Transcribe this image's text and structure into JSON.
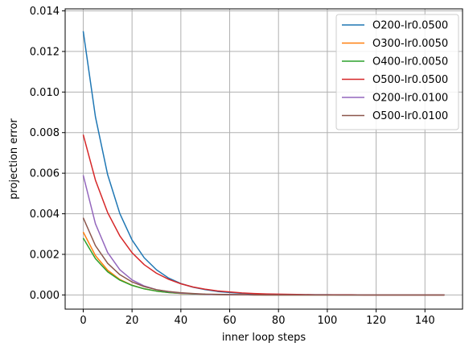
{
  "chart_data": {
    "type": "line",
    "title": "",
    "xlabel": "inner loop steps",
    "ylabel": "projection error",
    "xlim": [
      -7.4,
      155.4
    ],
    "ylim": [
      -0.0007,
      0.0141
    ],
    "grid": true,
    "legend_position": "top-right",
    "x_ticks": [
      0,
      20,
      40,
      60,
      80,
      100,
      120,
      140
    ],
    "x_tick_labels": [
      "0",
      "20",
      "40",
      "60",
      "80",
      "100",
      "120",
      "140"
    ],
    "y_ticks": [
      0,
      0.002,
      0.004,
      0.006,
      0.008,
      0.01,
      0.012,
      0.014
    ],
    "y_tick_labels": [
      "0.000",
      "0.002",
      "0.004",
      "0.006",
      "0.008",
      "0.010",
      "0.012",
      "0.014"
    ],
    "x": [
      0,
      5,
      10,
      15,
      20,
      25,
      30,
      35,
      40,
      45,
      50,
      55,
      60,
      65,
      70,
      75,
      80,
      85,
      90,
      95,
      100,
      105,
      110,
      115,
      120,
      125,
      130,
      135,
      140,
      145,
      148
    ],
    "series": [
      {
        "name": "O200-lr0.0500",
        "color": "#1f77b4",
        "values": [
          0.013,
          0.00878,
          0.00593,
          0.00401,
          0.00271,
          0.00183,
          0.00124,
          0.00083,
          0.00056,
          0.00038,
          0.00026,
          0.00017,
          0.00012,
          8e-05,
          5e-05,
          4e-05,
          2e-05,
          2e-05,
          1e-05,
          1e-05,
          1e-05,
          0.0,
          0.0,
          0.0,
          0.0,
          0.0,
          0.0,
          0.0,
          0.0,
          0.0,
          0.0
        ]
      },
      {
        "name": "O300-lr0.0050",
        "color": "#ff7f0e",
        "values": [
          0.0031,
          0.00194,
          0.00122,
          0.00076,
          0.00048,
          0.0003,
          0.00019,
          0.00012,
          7e-05,
          5e-05,
          3e-05,
          2e-05,
          1e-05,
          1e-05,
          0.0,
          0.0,
          0.0,
          0.0,
          0.0,
          0.0,
          0.0,
          0.0,
          0.0,
          0.0,
          0.0,
          0.0,
          0.0,
          0.0,
          0.0,
          0.0,
          0.0
        ]
      },
      {
        "name": "O400-lr0.0050",
        "color": "#2ca02c",
        "values": [
          0.0028,
          0.00179,
          0.00114,
          0.00073,
          0.00047,
          0.0003,
          0.00019,
          0.00012,
          8e-05,
          5e-05,
          3e-05,
          2e-05,
          1e-05,
          1e-05,
          0.0,
          0.0,
          0.0,
          0.0,
          0.0,
          0.0,
          0.0,
          0.0,
          0.0,
          0.0,
          0.0,
          0.0,
          0.0,
          0.0,
          0.0,
          0.0,
          0.0
        ]
      },
      {
        "name": "O500-lr0.0500",
        "color": "#d62728",
        "values": [
          0.0079,
          0.00566,
          0.00406,
          0.00291,
          0.00208,
          0.00149,
          0.00107,
          0.00077,
          0.00055,
          0.00039,
          0.00028,
          0.0002,
          0.00015,
          0.0001,
          7e-05,
          5e-05,
          4e-05,
          3e-05,
          2e-05,
          1e-05,
          1e-05,
          1e-05,
          1e-05,
          0.0,
          0.0,
          0.0,
          0.0,
          0.0,
          0.0,
          0.0,
          0.0
        ]
      },
      {
        "name": "O200-lr0.0100",
        "color": "#9467bd",
        "values": [
          0.0059,
          0.00351,
          0.00209,
          0.00124,
          0.00074,
          0.00044,
          0.00026,
          0.00016,
          9e-05,
          6e-05,
          3e-05,
          2e-05,
          1e-05,
          1e-05,
          0.0,
          0.0,
          0.0,
          0.0,
          0.0,
          0.0,
          0.0,
          0.0,
          0.0,
          0.0,
          0.0,
          0.0,
          0.0,
          0.0,
          0.0,
          0.0,
          0.0
        ]
      },
      {
        "name": "O500-lr0.0100",
        "color": "#8c564b",
        "values": [
          0.0038,
          0.00243,
          0.00156,
          0.001,
          0.00064,
          0.00041,
          0.00026,
          0.00017,
          0.00011,
          7e-05,
          4e-05,
          3e-05,
          2e-05,
          1e-05,
          1e-05,
          0.0,
          0.0,
          0.0,
          0.0,
          0.0,
          0.0,
          0.0,
          0.0,
          0.0,
          0.0,
          0.0,
          0.0,
          0.0,
          0.0,
          0.0,
          0.0
        ]
      }
    ]
  }
}
